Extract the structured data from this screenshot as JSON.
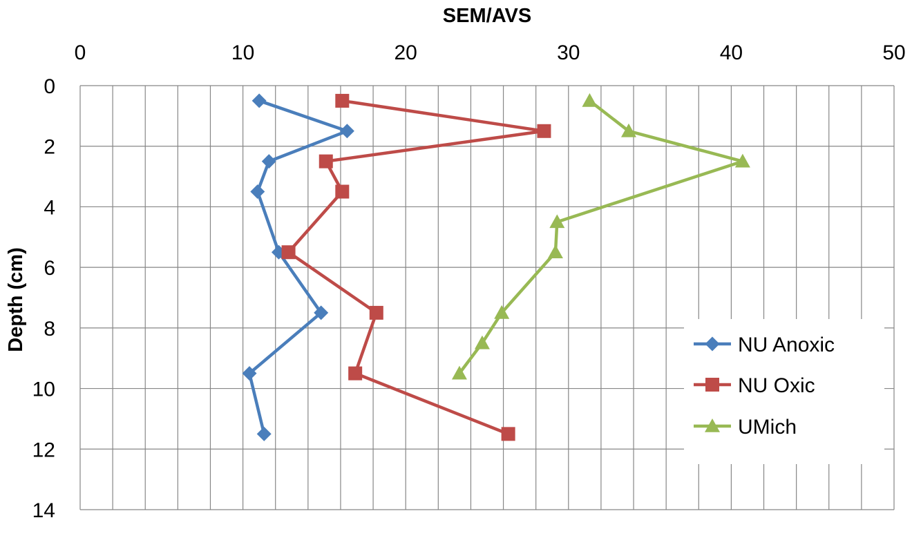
{
  "chart_data": {
    "type": "line",
    "title": "",
    "xlabel": "SEM/AVS",
    "ylabel": "Depth (cm)",
    "xlim": [
      0,
      50
    ],
    "ylim": [
      0,
      14
    ],
    "x_ticks": [
      0,
      10,
      20,
      30,
      40,
      50
    ],
    "y_ticks": [
      0,
      2,
      4,
      6,
      8,
      10,
      12,
      14
    ],
    "x_axis_position": "top",
    "y_axis_reversed": true,
    "grid": true,
    "legend_position": "right",
    "series": [
      {
        "name": "NU Anoxic",
        "color": "#4a7ebb",
        "marker": "diamond",
        "points": [
          {
            "x": 11.0,
            "y": 0.5
          },
          {
            "x": 16.4,
            "y": 1.5
          },
          {
            "x": 11.6,
            "y": 2.5
          },
          {
            "x": 10.9,
            "y": 3.5
          },
          {
            "x": 12.2,
            "y": 5.5
          },
          {
            "x": 14.8,
            "y": 7.5
          },
          {
            "x": 10.4,
            "y": 9.5
          },
          {
            "x": 11.3,
            "y": 11.5
          }
        ]
      },
      {
        "name": "NU Oxic",
        "color": "#be4b48",
        "marker": "square",
        "points": [
          {
            "x": 16.1,
            "y": 0.5
          },
          {
            "x": 28.5,
            "y": 1.5
          },
          {
            "x": 15.1,
            "y": 2.5
          },
          {
            "x": 16.1,
            "y": 3.5
          },
          {
            "x": 12.8,
            "y": 5.5
          },
          {
            "x": 18.2,
            "y": 7.5
          },
          {
            "x": 16.9,
            "y": 9.5
          },
          {
            "x": 26.3,
            "y": 11.5
          }
        ]
      },
      {
        "name": "UMich",
        "color": "#98b954",
        "marker": "triangle",
        "points": [
          {
            "x": 31.3,
            "y": 0.5
          },
          {
            "x": 33.7,
            "y": 1.5
          },
          {
            "x": 40.7,
            "y": 2.5
          },
          {
            "x": 29.3,
            "y": 4.5
          },
          {
            "x": 29.2,
            "y": 5.5
          },
          {
            "x": 25.9,
            "y": 7.5
          },
          {
            "x": 24.7,
            "y": 8.5
          },
          {
            "x": 23.3,
            "y": 9.5
          }
        ]
      }
    ]
  }
}
